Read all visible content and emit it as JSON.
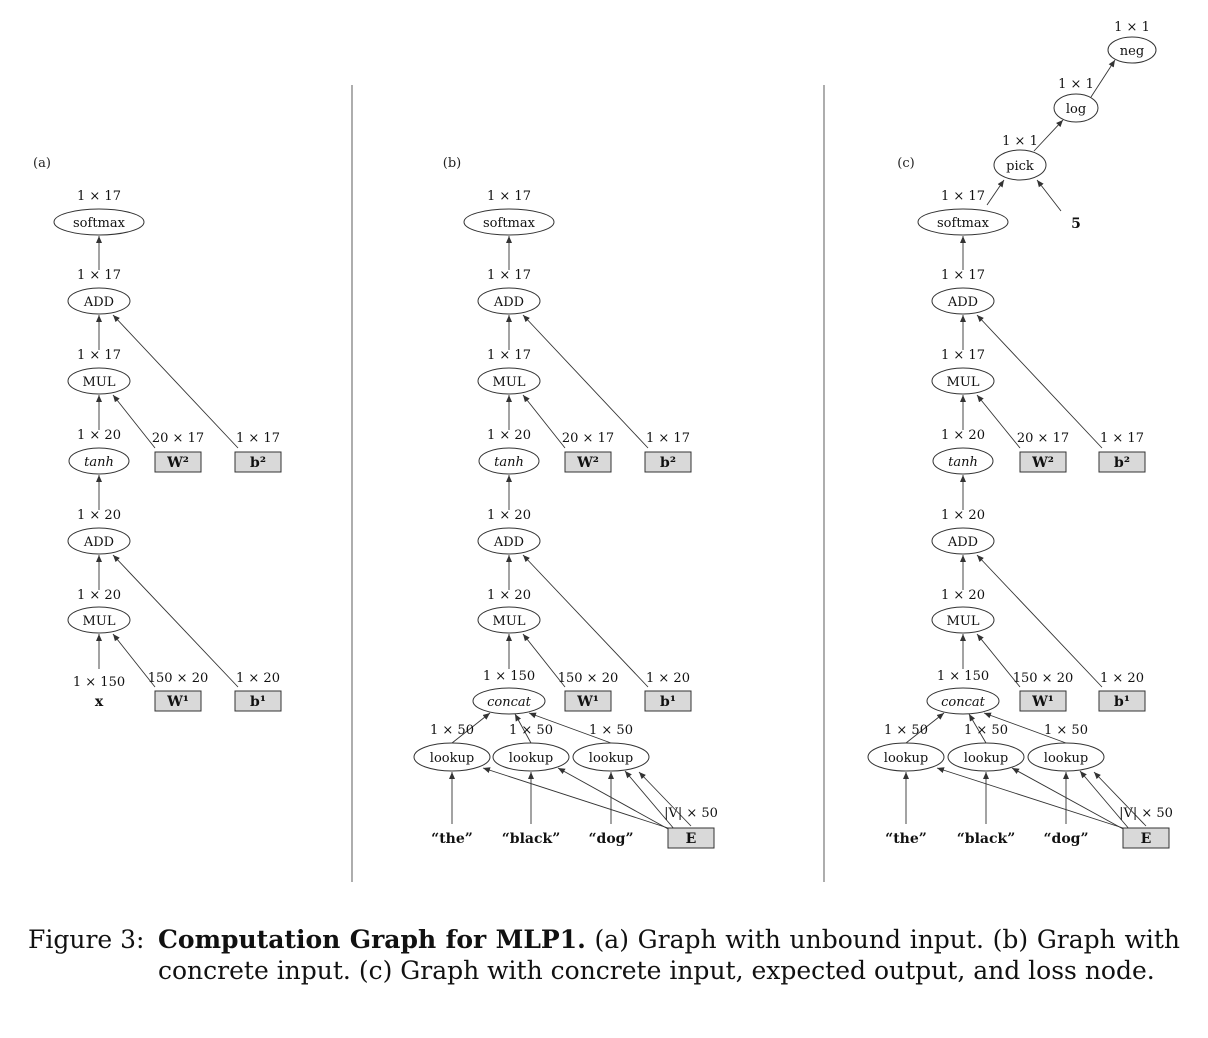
{
  "panels": [
    {
      "label": "(a)",
      "nodes": {
        "softmax": "softmax",
        "add2": "ADD",
        "mul2": "MUL",
        "tanh": "tanh",
        "add1": "ADD",
        "mul1": "MUL",
        "x": "x",
        "w2": "W²",
        "b2": "b²",
        "w1": "W¹",
        "b1": "b¹"
      },
      "dims": {
        "softmax": "1 × 17",
        "add2": "1 × 17",
        "mul2": "1 × 17",
        "tanh": "1 × 20",
        "add1": "1 × 20",
        "mul1": "1 × 20",
        "x": "1 × 150",
        "w2": "20 × 17",
        "b2": "1 × 17",
        "w1": "150 × 20",
        "b1": "1 × 20"
      }
    },
    {
      "label": "(b)",
      "nodes": {
        "softmax": "softmax",
        "add2": "ADD",
        "mul2": "MUL",
        "tanh": "tanh",
        "add1": "ADD",
        "mul1": "MUL",
        "concat": "concat",
        "lookup1": "lookup",
        "lookup2": "lookup",
        "lookup3": "lookup",
        "the": "“the”",
        "black": "“black”",
        "dog": "“dog”",
        "E": "E",
        "w2": "W²",
        "b2": "b²",
        "w1": "W¹",
        "b1": "b¹"
      },
      "dims": {
        "softmax": "1 × 17",
        "add2": "1 × 17",
        "mul2": "1 × 17",
        "tanh": "1 × 20",
        "add1": "1 × 20",
        "mul1": "1 × 20",
        "concat": "1 × 150",
        "lookup1": "1 × 50",
        "lookup2": "1 × 50",
        "lookup3": "1 × 50",
        "E": "|V| × 50",
        "w2": "20 × 17",
        "b2": "1 × 17",
        "w1": "150 × 20",
        "b1": "1 × 20"
      }
    },
    {
      "label": "(c)",
      "nodes": {
        "neg": "neg",
        "log": "log",
        "pick": "pick",
        "five": "5",
        "softmax": "softmax",
        "add2": "ADD",
        "mul2": "MUL",
        "tanh": "tanh",
        "add1": "ADD",
        "mul1": "MUL",
        "concat": "concat",
        "lookup1": "lookup",
        "lookup2": "lookup",
        "lookup3": "lookup",
        "the": "“the”",
        "black": "“black”",
        "dog": "“dog”",
        "E": "E",
        "w2": "W²",
        "b2": "b²",
        "w1": "W¹",
        "b1": "b¹"
      },
      "dims": {
        "neg": "1 × 1",
        "log": "1 × 1",
        "pick": "1 × 1",
        "softmax": "1 × 17",
        "add2": "1 × 17",
        "mul2": "1 × 17",
        "tanh": "1 × 20",
        "add1": "1 × 20",
        "mul1": "1 × 20",
        "concat": "1 × 150",
        "lookup1": "1 × 50",
        "lookup2": "1 × 50",
        "lookup3": "1 × 50",
        "E": "|V| × 50",
        "w2": "20 × 17",
        "b2": "1 × 17",
        "w1": "150 × 20",
        "b1": "1 × 20"
      }
    }
  ],
  "caption": {
    "label": "Figure 3:",
    "title": "Computation Graph for MLP1.",
    "text": " (a) Graph with unbound input. (b) Graph with concrete input. (c) Graph with concrete input, expected output, and loss node."
  },
  "colors": {
    "param_fill": "#d9d9d9",
    "stroke": "#333333"
  }
}
